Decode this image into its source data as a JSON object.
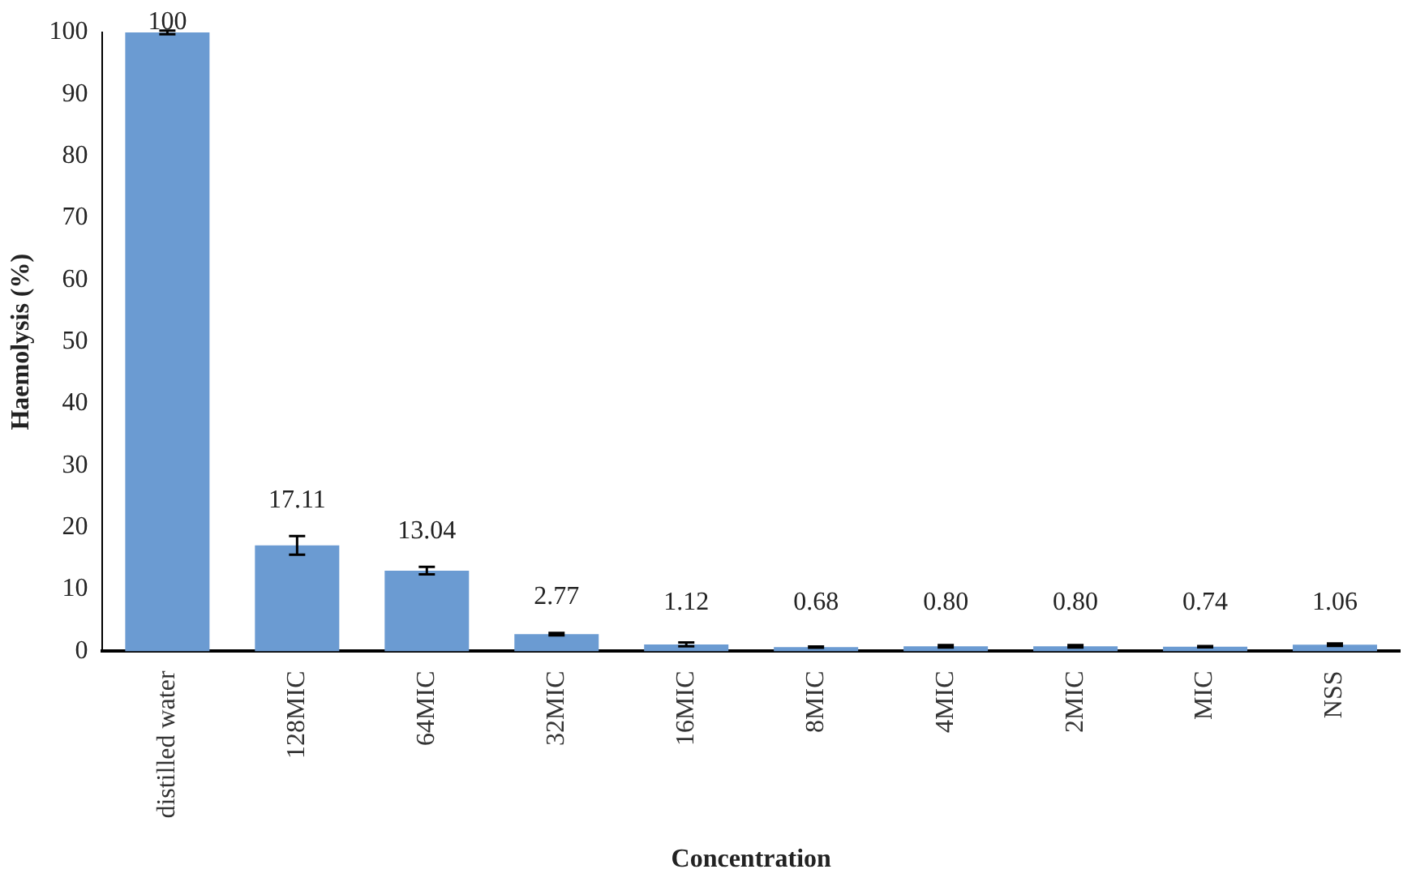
{
  "chart_data": {
    "type": "bar",
    "xlabel": "Concentration",
    "ylabel": "Haemolysis (%)",
    "categories": [
      "distilled water",
      "128MIC",
      "64MIC",
      "32MIC",
      "16MIC",
      "8MIC",
      "4MIC",
      "2MIC",
      "MIC",
      "NSS"
    ],
    "values": [
      100,
      17.11,
      13.04,
      2.77,
      1.12,
      0.68,
      0.8,
      0.8,
      0.74,
      1.06
    ],
    "errors": [
      0.3,
      1.5,
      0.6,
      0.2,
      0.3,
      0.1,
      0.2,
      0.2,
      0.1,
      0.2
    ],
    "value_labels": [
      "100",
      "17.11",
      "13.04",
      "2.77",
      "1.12",
      "0.68",
      "0.80",
      "0.80",
      "0.74",
      "1.06"
    ],
    "color": "#6b9bd2",
    "ylim": [
      0,
      100
    ],
    "yticks": [
      0,
      10,
      20,
      30,
      40,
      50,
      60,
      70,
      80,
      90,
      100
    ],
    "grid": false,
    "legend": false
  }
}
